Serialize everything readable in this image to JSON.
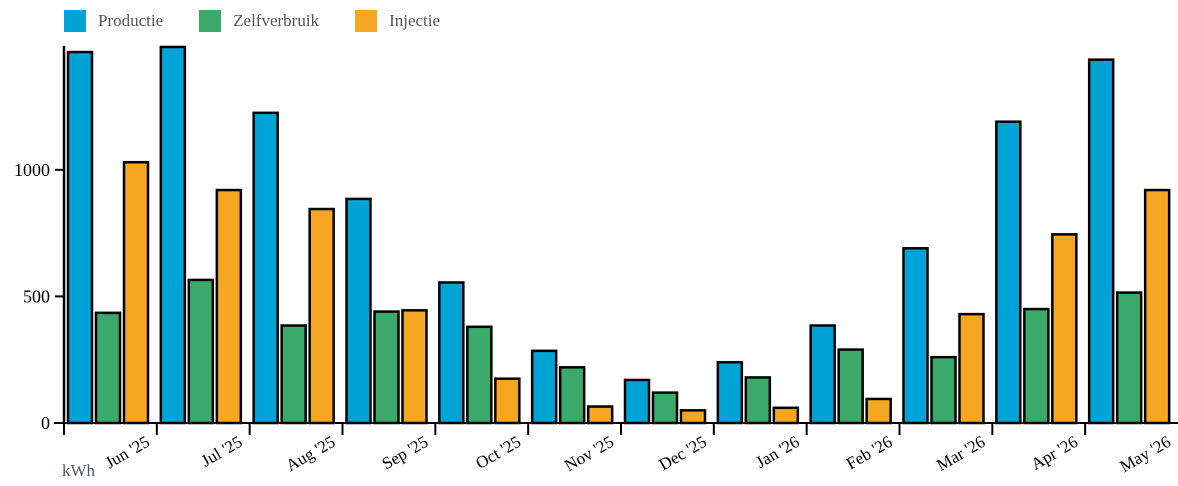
{
  "chart_data": {
    "type": "bar",
    "categories": [
      "Jun '25",
      "Jul '25",
      "Aug '25",
      "Sep '25",
      "Oct '25",
      "Nov '25",
      "Dec '25",
      "Jan '26",
      "Feb '26",
      "Mar '26",
      "Apr '26",
      "May '26"
    ],
    "series": [
      {
        "name": "Productie",
        "color": "#00a3d6",
        "values": [
          1465,
          1485,
          1225,
          885,
          555,
          285,
          170,
          240,
          385,
          690,
          1190,
          1435
        ]
      },
      {
        "name": "Zelfverbruik",
        "color": "#3aa96a",
        "values": [
          435,
          565,
          385,
          440,
          380,
          220,
          120,
          180,
          290,
          260,
          450,
          515
        ]
      },
      {
        "name": "Injectie",
        "color": "#f5a623",
        "values": [
          1030,
          920,
          845,
          445,
          175,
          65,
          50,
          60,
          95,
          430,
          745,
          920
        ]
      }
    ],
    "yticks": [
      0,
      500,
      1000
    ],
    "ylim": [
      0,
      1500
    ],
    "unit": "kWh",
    "legend_position": "top-left",
    "grid": false
  }
}
